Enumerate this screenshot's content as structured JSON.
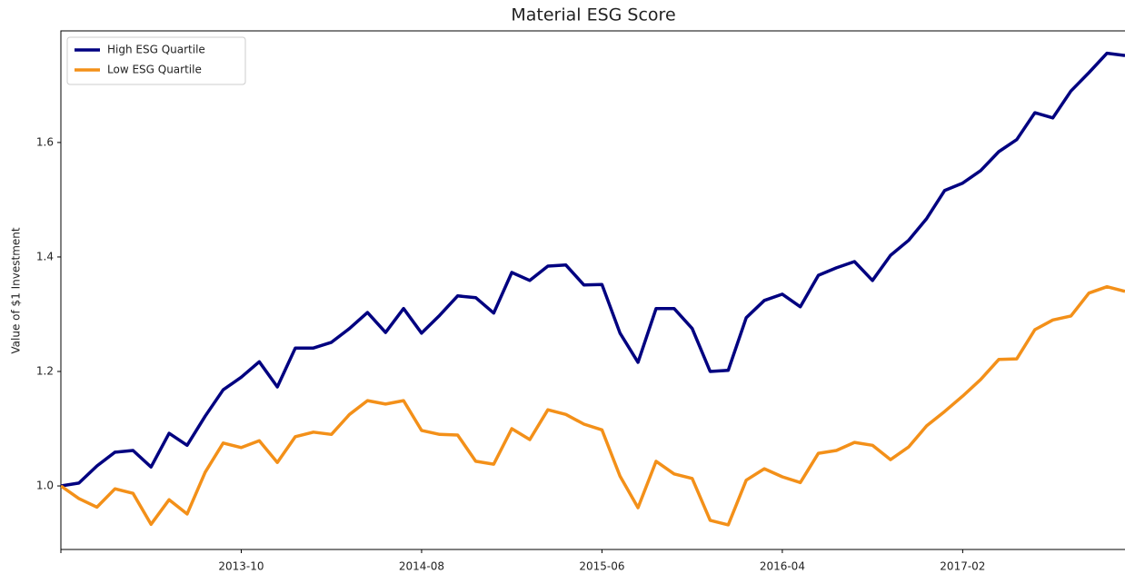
{
  "chart_data": {
    "type": "line",
    "title": "Material ESG Score",
    "ylabel": "Value of $1 Investment",
    "x": [
      "2012-12",
      "2013-01",
      "2013-02",
      "2013-03",
      "2013-04",
      "2013-05",
      "2013-06",
      "2013-07",
      "2013-08",
      "2013-09",
      "2013-10",
      "2013-11",
      "2013-12",
      "2014-01",
      "2014-02",
      "2014-03",
      "2014-04",
      "2014-05",
      "2014-06",
      "2014-07",
      "2014-08",
      "2014-09",
      "2014-10",
      "2014-11",
      "2014-12",
      "2015-01",
      "2015-02",
      "2015-03",
      "2015-04",
      "2015-05",
      "2015-06",
      "2015-07",
      "2015-08",
      "2015-09",
      "2015-10",
      "2015-11",
      "2015-12",
      "2016-01",
      "2016-02",
      "2016-03",
      "2016-04",
      "2016-05",
      "2016-06",
      "2016-07",
      "2016-08",
      "2016-09",
      "2016-10",
      "2016-11",
      "2016-12",
      "2017-01",
      "2017-02",
      "2017-03",
      "2017-04",
      "2017-05",
      "2017-06",
      "2017-07",
      "2017-08",
      "2017-09",
      "2017-10",
      "2017-11"
    ],
    "xticks": [
      "2013-10",
      "2014-08",
      "2015-06",
      "2016-04",
      "2017-02"
    ],
    "series": [
      {
        "name": "High ESG Quartile",
        "color": "#000080",
        "values": [
          1.0,
          1.005,
          1.035,
          1.059,
          1.062,
          1.033,
          1.092,
          1.071,
          1.122,
          1.168,
          1.19,
          1.217,
          1.173,
          1.241,
          1.241,
          1.251,
          1.275,
          1.303,
          1.268,
          1.31,
          1.267,
          1.298,
          1.332,
          1.329,
          1.302,
          1.373,
          1.359,
          1.384,
          1.386,
          1.351,
          1.352,
          1.267,
          1.216,
          1.31,
          1.31,
          1.275,
          1.2,
          1.202,
          1.294,
          1.324,
          1.335,
          1.313,
          1.368,
          1.381,
          1.392,
          1.359,
          1.403,
          1.429,
          1.467,
          1.516,
          1.529,
          1.551,
          1.584,
          1.605,
          1.652,
          1.643,
          1.69,
          1.722,
          1.756,
          1.752
        ]
      },
      {
        "name": "Low ESG Quartile",
        "color": "#f39019",
        "values": [
          1.0,
          0.978,
          0.963,
          0.995,
          0.987,
          0.933,
          0.976,
          0.951,
          1.024,
          1.075,
          1.067,
          1.079,
          1.041,
          1.086,
          1.094,
          1.09,
          1.125,
          1.149,
          1.143,
          1.149,
          1.097,
          1.09,
          1.089,
          1.043,
          1.038,
          1.1,
          1.081,
          1.133,
          1.125,
          1.108,
          1.098,
          1.017,
          0.962,
          1.043,
          1.021,
          1.013,
          0.94,
          0.932,
          1.01,
          1.03,
          1.016,
          1.006,
          1.057,
          1.062,
          1.076,
          1.071,
          1.046,
          1.068,
          1.105,
          1.13,
          1.157,
          1.186,
          1.221,
          1.222,
          1.273,
          1.29,
          1.297,
          1.337,
          1.348,
          1.34
        ]
      }
    ],
    "ylim": [
      0.889,
      1.795
    ],
    "yticks": [
      {
        "value": 1,
        "label": "1.0"
      },
      1.2,
      1.4,
      1.6
    ],
    "grid": false,
    "legend": "upper left"
  }
}
